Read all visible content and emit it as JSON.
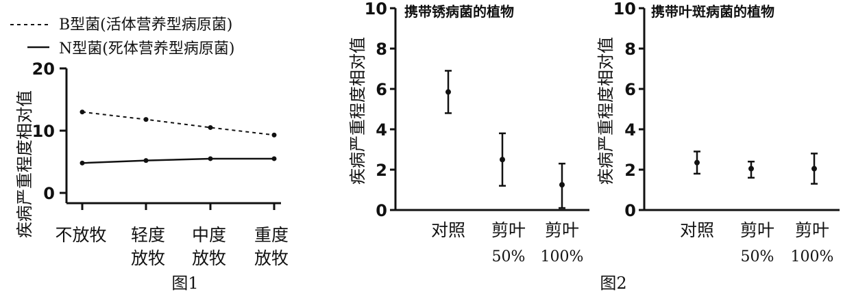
{
  "figure1": {
    "caption": "图1",
    "ylabel": "疾病严重程度相对值",
    "legend": [
      {
        "label": "B型菌(活体营养型病原菌)",
        "style": "dashed"
      },
      {
        "label": "N型菌(死体营养型病原菌)",
        "style": "solid"
      }
    ],
    "category_labels": [
      {
        "line1": "不放牧",
        "line2": ""
      },
      {
        "line1": "轻度",
        "line2": "放牧"
      },
      {
        "line1": "中度",
        "line2": "放牧"
      },
      {
        "line1": "重度",
        "line2": "放牧"
      }
    ]
  },
  "figure2": {
    "caption": "图2",
    "ylabel": "疾病严重程度相对值",
    "panels": [
      {
        "title": "携带锈病菌的植物"
      },
      {
        "title": "携带叶斑病菌的植物"
      }
    ],
    "category_labels": [
      {
        "line1": "对照",
        "line2": ""
      },
      {
        "line1": "剪叶",
        "line2": "50%"
      },
      {
        "line1": "剪叶",
        "line2": "100%"
      }
    ]
  },
  "chart_data": [
    {
      "type": "line",
      "caption": "图1",
      "categories": [
        "不放牧",
        "轻度放牧",
        "中度放牧",
        "重度放牧"
      ],
      "ylabel": "疾病严重程度相对值",
      "ylim": [
        0,
        20
      ],
      "yticks": [
        0,
        10,
        20
      ],
      "series": [
        {
          "name": "B型菌(活体营养型病原菌)",
          "line_style": "dashed",
          "values": [
            13.0,
            11.8,
            10.5,
            9.3
          ]
        },
        {
          "name": "N型菌(死体营养型病原菌)",
          "line_style": "solid",
          "values": [
            4.8,
            5.2,
            5.5,
            5.5
          ]
        }
      ],
      "legend_position": "top-left",
      "grid": false
    },
    {
      "type": "scatter",
      "caption": "图2",
      "title": "携带锈病菌的植物",
      "categories": [
        "对照",
        "剪叶50%",
        "剪叶100%"
      ],
      "ylabel": "疾病严重程度相对值",
      "ylim": [
        0,
        10
      ],
      "yticks": [
        0,
        2,
        4,
        6,
        8,
        10
      ],
      "values": [
        5.85,
        2.5,
        1.25
      ],
      "error_low": [
        4.8,
        1.2,
        0.1
      ],
      "error_high": [
        6.9,
        3.8,
        2.3
      ],
      "grid": false
    },
    {
      "type": "scatter",
      "caption": "图2",
      "title": "携带叶斑病菌的植物",
      "categories": [
        "对照",
        "剪叶50%",
        "剪叶100%"
      ],
      "ylabel": "疾病严重程度相对值",
      "ylim": [
        0,
        10
      ],
      "yticks": [
        0,
        2,
        4,
        6,
        8,
        10
      ],
      "values": [
        2.35,
        2.05,
        2.05
      ],
      "error_low": [
        1.8,
        1.6,
        1.3
      ],
      "error_high": [
        2.9,
        2.4,
        2.8
      ],
      "grid": false
    }
  ]
}
